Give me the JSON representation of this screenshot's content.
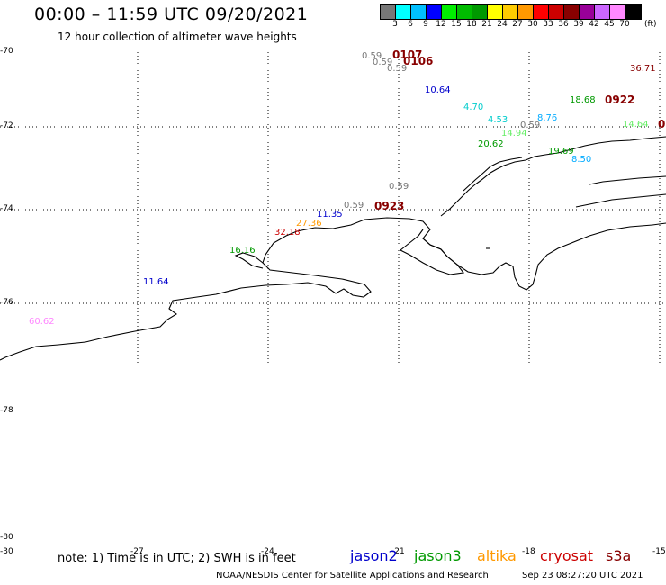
{
  "header": {
    "title": "00:00 – 11:59 UTC 09/20/2021",
    "subtitle": "12 hour collection of altimeter wave heights"
  },
  "colorbar": {
    "colors": [
      "#777777",
      "#00ffff",
      "#00bfff",
      "#0000ff",
      "#00ee00",
      "#00bb00",
      "#009900",
      "#ffff00",
      "#ffcc00",
      "#ff9900",
      "#ff0000",
      "#cc0000",
      "#880000",
      "#990099",
      "#cc66ff",
      "#ff88ff",
      "#000000"
    ],
    "labels": [
      "3",
      "6",
      "9",
      "12",
      "15",
      "18",
      "21",
      "24",
      "27",
      "30",
      "33",
      "36",
      "39",
      "42",
      "45",
      "70"
    ],
    "unit": "(ft)"
  },
  "lat_labels": [
    "-70",
    "-72",
    "-74",
    "-76",
    "-78",
    "-80"
  ],
  "lon_labels": [
    "-30",
    "-27",
    "-24",
    "-21",
    "-18",
    "-15"
  ],
  "wave_heights": [
    {
      "text": "0.59",
      "color": "#777777"
    },
    {
      "text": "0.59",
      "color": "#777777"
    },
    {
      "text": "0.59",
      "color": "#777777"
    },
    {
      "text": "36.71",
      "color": "#880000"
    },
    {
      "text": "10.64",
      "color": "#0000cc"
    },
    {
      "text": "18.68",
      "color": "#009900"
    },
    {
      "text": "4.70",
      "color": "#00cccc"
    },
    {
      "text": "4.53",
      "color": "#00cccc"
    },
    {
      "text": "8.76",
      "color": "#00aaff"
    },
    {
      "text": "14.64",
      "color": "#66ee66"
    },
    {
      "text": "0.59",
      "color": "#777777"
    },
    {
      "text": "14.94",
      "color": "#66ee66"
    },
    {
      "text": "20.62",
      "color": "#009900"
    },
    {
      "text": "19.69",
      "color": "#009900"
    },
    {
      "text": "8.50",
      "color": "#00aaff"
    },
    {
      "text": "0.59",
      "color": "#777777"
    },
    {
      "text": "0.59",
      "color": "#777777"
    },
    {
      "text": "11.35",
      "color": "#0000cc"
    },
    {
      "text": "27.36",
      "color": "#ff9900"
    },
    {
      "text": "32.18",
      "color": "#cc0000"
    },
    {
      "text": "16.16",
      "color": "#009900"
    },
    {
      "text": "11.64",
      "color": "#0000cc"
    },
    {
      "text": "60.62",
      "color": "#ff88ff"
    }
  ],
  "time_labels": [
    {
      "text": "0107",
      "color": "#880000"
    },
    {
      "text": "0106",
      "color": "#880000"
    },
    {
      "text": "0922",
      "color": "#880000"
    },
    {
      "text": "0923",
      "color": "#880000"
    },
    {
      "text": "0",
      "color": "#880000"
    }
  ],
  "note": "note: 1) Time is in UTC; 2) SWH is in feet",
  "satellites": [
    {
      "name": "jason2",
      "color": "#0000cc"
    },
    {
      "name": "jason3",
      "color": "#009900"
    },
    {
      "name": "altika",
      "color": "#ff9900"
    },
    {
      "name": "cryosat",
      "color": "#cc0000"
    },
    {
      "name": "s3a",
      "color": "#880000"
    }
  ],
  "footer": {
    "credit": "NOAA/NESDIS Center for Satellite Applications and Research",
    "timestamp": "Sep 23 08:27:20 UTC 2021"
  }
}
